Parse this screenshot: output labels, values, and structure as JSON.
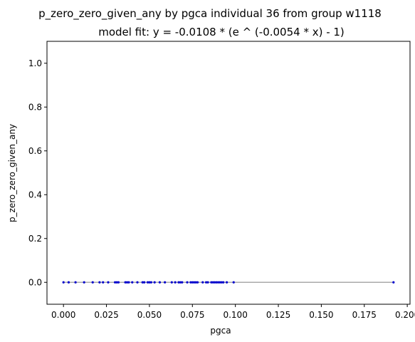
{
  "chart_data": {
    "type": "scatter",
    "title": "p_zero_zero_given_any by pgca individual 36 from group w1118",
    "subtitle": "model fit: y = -0.0108 * (e ^ (-0.0054 * x) - 1)",
    "xlabel": "pgca",
    "ylabel": "p_zero_zero_given_any",
    "xlim": [
      -0.0096,
      0.2016
    ],
    "ylim": [
      -0.1,
      1.1
    ],
    "xticks": [
      0.0,
      0.025,
      0.05,
      0.075,
      0.1,
      0.125,
      0.15,
      0.175,
      0.2
    ],
    "xtick_labels": [
      "0.000",
      "0.025",
      "0.050",
      "0.075",
      "0.100",
      "0.125",
      "0.150",
      "0.175",
      "0.200"
    ],
    "yticks": [
      0.0,
      0.2,
      0.4,
      0.6,
      0.8,
      1.0
    ],
    "ytick_labels": [
      "0.0",
      "0.2",
      "0.4",
      "0.6",
      "0.8",
      "1.0"
    ],
    "grid": false,
    "series": [
      {
        "kind": "points",
        "color": "#0000cc",
        "x": [
          0.0,
          0.003,
          0.007,
          0.012,
          0.017,
          0.021,
          0.023,
          0.026,
          0.03,
          0.031,
          0.032,
          0.036,
          0.037,
          0.038,
          0.04,
          0.043,
          0.046,
          0.047,
          0.049,
          0.05,
          0.051,
          0.053,
          0.056,
          0.059,
          0.063,
          0.065,
          0.067,
          0.068,
          0.069,
          0.072,
          0.074,
          0.075,
          0.076,
          0.077,
          0.078,
          0.081,
          0.083,
          0.084,
          0.086,
          0.087,
          0.088,
          0.089,
          0.09,
          0.091,
          0.092,
          0.093,
          0.095,
          0.099,
          0.192
        ],
        "y": [
          0,
          0,
          0,
          0,
          0,
          0,
          0,
          0,
          0,
          0,
          0,
          0,
          0,
          0,
          0,
          0,
          0,
          0,
          0,
          0,
          0,
          0,
          0,
          0,
          0,
          0,
          0,
          0,
          0,
          0,
          0,
          0,
          0,
          0,
          0,
          0,
          0,
          0,
          0,
          0,
          0,
          0,
          0,
          0,
          0,
          0,
          0,
          0,
          0
        ]
      },
      {
        "kind": "fit-line",
        "color": "#aaaaaa",
        "x": [
          0.0,
          0.192
        ],
        "y": [
          0.0,
          0.0
        ]
      }
    ]
  },
  "colors": {
    "points": "#0000cc",
    "fit_line": "#aaaaaa",
    "axes": "#000000",
    "background": "#ffffff"
  }
}
